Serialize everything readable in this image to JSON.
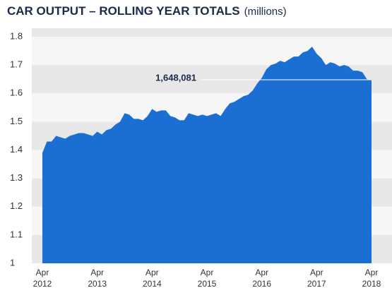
{
  "chart_data": {
    "type": "area",
    "title": "CAR OUTPUT – ROLLING YEAR TOTALS",
    "subtitle": "(millions)",
    "color": "#1b6fd2",
    "categories": [
      "Apr 2012",
      null,
      null,
      null,
      null,
      null,
      null,
      null,
      null,
      null,
      null,
      null,
      "Apr 2013",
      null,
      null,
      null,
      null,
      null,
      null,
      null,
      null,
      null,
      null,
      null,
      "Apr 2014",
      null,
      null,
      null,
      null,
      null,
      null,
      null,
      null,
      null,
      null,
      null,
      "Apr 2015",
      null,
      null,
      null,
      null,
      null,
      null,
      null,
      null,
      null,
      null,
      null,
      "Apr 2016",
      null,
      null,
      null,
      null,
      null,
      null,
      null,
      null,
      null,
      null,
      null,
      "Apr 2017",
      null,
      null,
      null,
      null,
      null,
      null,
      null,
      null,
      null,
      null,
      null,
      "Apr 2018"
    ],
    "values": [
      1.39,
      1.43,
      1.43,
      1.45,
      1.445,
      1.44,
      1.45,
      1.455,
      1.46,
      1.46,
      1.455,
      1.45,
      1.465,
      1.455,
      1.47,
      1.475,
      1.49,
      1.5,
      1.53,
      1.525,
      1.51,
      1.51,
      1.505,
      1.52,
      1.545,
      1.535,
      1.54,
      1.54,
      1.52,
      1.515,
      1.505,
      1.505,
      1.53,
      1.525,
      1.52,
      1.525,
      1.52,
      1.525,
      1.53,
      1.52,
      1.545,
      1.565,
      1.57,
      1.58,
      1.59,
      1.595,
      1.61,
      1.635,
      1.655,
      1.685,
      1.7,
      1.705,
      1.715,
      1.71,
      1.72,
      1.73,
      1.73,
      1.745,
      1.75,
      1.765,
      1.74,
      1.725,
      1.7,
      1.71,
      1.705,
      1.695,
      1.7,
      1.695,
      1.68,
      1.68,
      1.675,
      1.65,
      1.648081
    ],
    "ylim": [
      1,
      1.83
    ],
    "yticks": [
      1,
      1.1,
      1.2,
      1.3,
      1.4,
      1.5,
      1.6,
      1.7,
      1.8
    ],
    "grid": true,
    "annotation": {
      "label": "1,648,081",
      "value": 1.648081
    }
  }
}
